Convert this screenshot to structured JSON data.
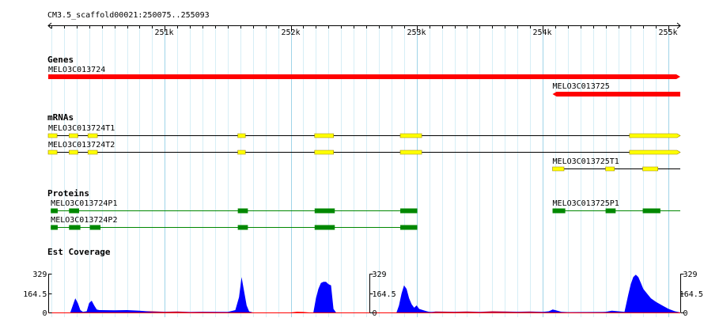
{
  "region": {
    "label": "CM3.5_scaffold00021:250075..255093",
    "start": 250075,
    "end": 255093
  },
  "ruler": {
    "ticks": [
      {
        "pos": 251000,
        "label": "251k"
      },
      {
        "pos": 252000,
        "label": "252k"
      },
      {
        "pos": 253000,
        "label": "253k"
      },
      {
        "pos": 254000,
        "label": "254k"
      },
      {
        "pos": 255000,
        "label": "255k"
      }
    ]
  },
  "colors": {
    "grid_minor": "#d6eef6",
    "grid_major": "#9fd4e8",
    "gene": "#ff0000",
    "mrna_exon": "#ffff00",
    "mrna_outline": "#a08800",
    "protein": "#008800",
    "coverage_fwd": "#0000ff",
    "coverage_rev": "#ff0000"
  },
  "tracks": {
    "genes": {
      "title": "Genes",
      "features": [
        {
          "name": "MELO3C013724",
          "start": 250075,
          "end": 255093,
          "strand": "+"
        },
        {
          "name": "MELO3C013725",
          "start": 254079,
          "end": 255093,
          "strand": "-"
        }
      ]
    },
    "mrnas": {
      "title": "mRNAs",
      "features": [
        {
          "name": "MELO3C013724T1",
          "start": 250075,
          "end": 255093,
          "strand": "+",
          "exons": [
            [
              250075,
              250145
            ],
            [
              250240,
              250310
            ],
            [
              250390,
              250465
            ],
            [
              251580,
              251640
            ],
            [
              252190,
              252340
            ],
            [
              252870,
              253040
            ],
            [
              254690,
              255093
            ]
          ]
        },
        {
          "name": "MELO3C013724T2",
          "start": 250075,
          "end": 255093,
          "strand": "+",
          "exons": [
            [
              250075,
              250145
            ],
            [
              250240,
              250310
            ],
            [
              250390,
              250465
            ],
            [
              251580,
              251640
            ],
            [
              252190,
              252340
            ],
            [
              252870,
              253040
            ],
            [
              254690,
              255093
            ]
          ]
        },
        {
          "name": "MELO3C013725T1",
          "start": 254079,
          "end": 255093,
          "strand": "-",
          "exons": [
            [
              254079,
              254170
            ],
            [
              254500,
              254570
            ],
            [
              254795,
              254915
            ]
          ]
        }
      ]
    },
    "proteins": {
      "title": "Proteins",
      "features": [
        {
          "name": "MELO3C013724P1",
          "start": 250095,
          "end": 253005,
          "blocks": [
            [
              250095,
              250150
            ],
            [
              250240,
              250320
            ],
            [
              251580,
              251660
            ],
            [
              252190,
              252350
            ],
            [
              252870,
              253005
            ]
          ]
        },
        {
          "name": "MELO3C013724P2",
          "start": 250095,
          "end": 253005,
          "blocks": [
            [
              250095,
              250150
            ],
            [
              250240,
              250330
            ],
            [
              250405,
              250490
            ],
            [
              251580,
              251660
            ],
            [
              252190,
              252350
            ],
            [
              252870,
              253005
            ]
          ]
        },
        {
          "name": "MELO3C013725P1",
          "start": 254079,
          "end": 255093,
          "blocks": [
            [
              254079,
              254180
            ],
            [
              254500,
              254580
            ],
            [
              254795,
              254935
            ]
          ]
        }
      ]
    },
    "est_coverage": {
      "title": "Est Coverage",
      "axis_labels": [
        "329",
        "164.5",
        "0"
      ],
      "max": 329,
      "axis_positions": [
        250075,
        252625,
        255093
      ],
      "forward_profile": [
        [
          250075,
          0
        ],
        [
          250250,
          0
        ],
        [
          250270,
          60
        ],
        [
          250290,
          120
        ],
        [
          250310,
          80
        ],
        [
          250330,
          20
        ],
        [
          250350,
          5
        ],
        [
          250380,
          10
        ],
        [
          250400,
          80
        ],
        [
          250420,
          100
        ],
        [
          250440,
          60
        ],
        [
          250460,
          25
        ],
        [
          250480,
          20
        ],
        [
          250600,
          18
        ],
        [
          250700,
          20
        ],
        [
          250800,
          15
        ],
        [
          250850,
          10
        ],
        [
          250900,
          5
        ],
        [
          251000,
          3
        ],
        [
          251200,
          3
        ],
        [
          251500,
          4
        ],
        [
          251560,
          20
        ],
        [
          251590,
          130
        ],
        [
          251610,
          300
        ],
        [
          251630,
          180
        ],
        [
          251650,
          60
        ],
        [
          251670,
          8
        ],
        [
          251700,
          0
        ],
        [
          252180,
          0
        ],
        [
          252200,
          120
        ],
        [
          252220,
          200
        ],
        [
          252240,
          250
        ],
        [
          252260,
          260
        ],
        [
          252280,
          260
        ],
        [
          252300,
          240
        ],
        [
          252320,
          230
        ],
        [
          252340,
          30
        ],
        [
          252360,
          0
        ],
        [
          252840,
          0
        ],
        [
          252860,
          60
        ],
        [
          252880,
          160
        ],
        [
          252900,
          230
        ],
        [
          252920,
          200
        ],
        [
          252940,
          120
        ],
        [
          252960,
          70
        ],
        [
          252980,
          40
        ],
        [
          253000,
          60
        ],
        [
          253020,
          30
        ],
        [
          253050,
          20
        ],
        [
          253080,
          10
        ],
        [
          253100,
          5
        ],
        [
          253200,
          3
        ],
        [
          253500,
          3
        ],
        [
          254000,
          4
        ],
        [
          254050,
          10
        ],
        [
          254080,
          25
        ],
        [
          254100,
          20
        ],
        [
          254150,
          5
        ],
        [
          254200,
          3
        ],
        [
          254500,
          5
        ],
        [
          254550,
          15
        ],
        [
          254600,
          10
        ],
        [
          254650,
          5
        ],
        [
          254680,
          150
        ],
        [
          254700,
          240
        ],
        [
          254720,
          300
        ],
        [
          254740,
          320
        ],
        [
          254760,
          300
        ],
        [
          254780,
          250
        ],
        [
          254800,
          200
        ],
        [
          254830,
          160
        ],
        [
          254860,
          120
        ],
        [
          254900,
          90
        ],
        [
          254950,
          60
        ],
        [
          255000,
          30
        ],
        [
          255050,
          10
        ],
        [
          255093,
          0
        ]
      ],
      "reverse_profile": [
        [
          250075,
          0
        ],
        [
          250800,
          0
        ],
        [
          250820,
          12
        ],
        [
          250900,
          10
        ],
        [
          251000,
          6
        ],
        [
          251100,
          8
        ],
        [
          251200,
          4
        ],
        [
          251300,
          6
        ],
        [
          251400,
          5
        ],
        [
          251500,
          4
        ],
        [
          251600,
          0
        ],
        [
          252000,
          0
        ],
        [
          252050,
          6
        ],
        [
          252100,
          4
        ],
        [
          252150,
          0
        ],
        [
          253100,
          0
        ],
        [
          253150,
          8
        ],
        [
          253300,
          6
        ],
        [
          253400,
          8
        ],
        [
          253500,
          5
        ],
        [
          253600,
          10
        ],
        [
          253700,
          8
        ],
        [
          253800,
          6
        ],
        [
          253900,
          8
        ],
        [
          254000,
          5
        ],
        [
          254100,
          0
        ],
        [
          255093,
          0
        ]
      ]
    }
  }
}
